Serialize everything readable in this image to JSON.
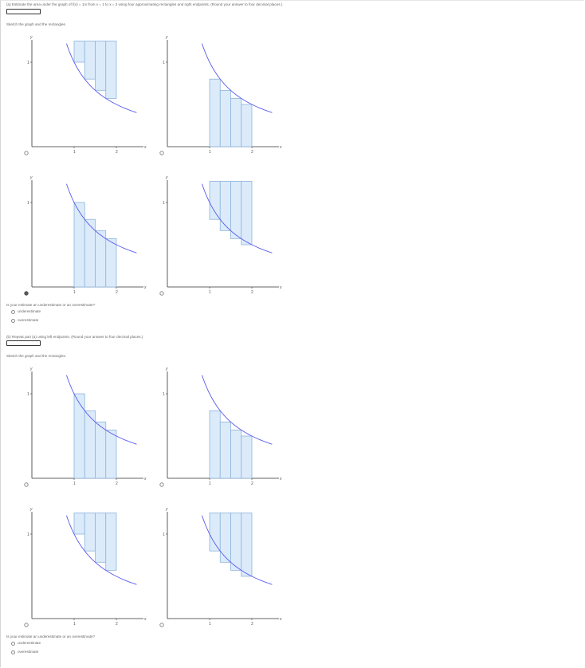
{
  "part_a": {
    "prompt": "(a) Estimate the area under the graph of f(x) = 1/x from x = 1 to x = 2 using four approximating rectangles and right endpoints. (Round your answer to four decimal places.)",
    "answer_value": "",
    "sketch_label": "Sketch the graph and the rectangles.",
    "question": "Is your estimate an underestimate or an overestimate?",
    "options": [
      "underestimate",
      "overestimate"
    ]
  },
  "part_b": {
    "prompt": "(b) Repeat part (a) using left endpoints. (Round your answer to four decimal places.)",
    "answer_value": "",
    "sketch_label": "Sketch the graph and the rectangles.",
    "question": "Is your estimate an underestimate or an overestimate?",
    "options": [
      "underestimate",
      "overestimate"
    ]
  },
  "axes": {
    "x_label": "x",
    "y_label": "y",
    "x_ticks": [
      "1",
      "2"
    ],
    "y_tick": "1",
    "origin": "0"
  },
  "colors": {
    "curve": "#5a5aee",
    "rect_fill": "#dcebfa",
    "rect_stroke": "#8eb4dc",
    "axis": "#333333"
  },
  "graph_sets": [
    {
      "set": "a",
      "graphs": [
        {
          "style": "tall-right",
          "selected": false
        },
        {
          "style": "right-endpoint",
          "selected": false
        },
        {
          "style": "left-endpoint",
          "selected": true
        },
        {
          "style": "tall-left",
          "selected": false
        }
      ]
    },
    {
      "set": "b",
      "graphs": [
        {
          "style": "left-endpoint",
          "selected": false
        },
        {
          "style": "right-endpoint",
          "selected": false
        },
        {
          "style": "tall-right",
          "selected": false
        },
        {
          "style": "tall-left",
          "selected": false
        }
      ]
    }
  ]
}
